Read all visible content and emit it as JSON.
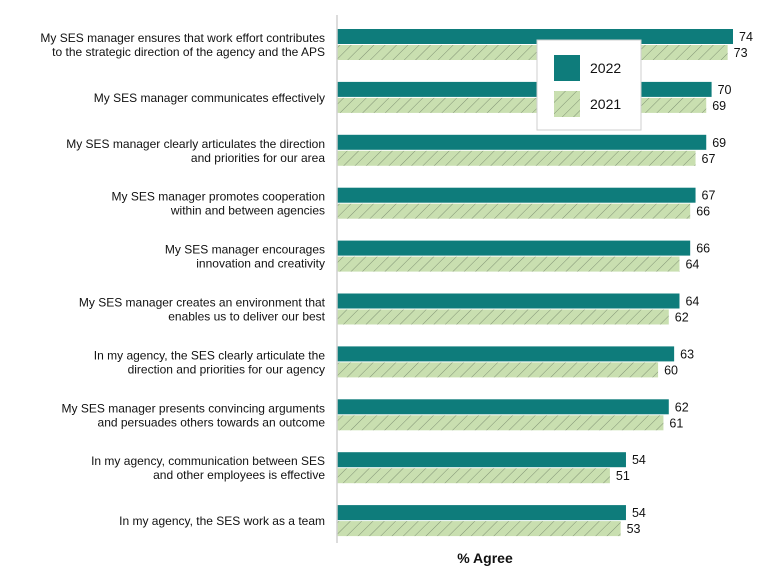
{
  "chart_data": {
    "type": "bar",
    "orientation": "horizontal",
    "categories": [
      [
        "My SES manager ensures that work effort contributes",
        "to the strategic direction of the agency and the APS"
      ],
      [
        "My SES manager communicates effectively"
      ],
      [
        "My SES manager clearly articulates the direction",
        "and priorities for our area"
      ],
      [
        "My SES manager promotes cooperation",
        "within and between agencies"
      ],
      [
        "My SES manager encourages",
        "innovation and creativity"
      ],
      [
        "My SES manager creates an environment that",
        "enables us to deliver our best"
      ],
      [
        "In my agency, the SES clearly articulate the",
        "direction and priorities for our agency"
      ],
      [
        "My SES manager presents convincing arguments",
        "and persuades others towards an outcome"
      ],
      [
        "In my agency, communication between SES",
        "and other employees is effective"
      ],
      [
        "In my agency, the SES work as a team"
      ]
    ],
    "series": [
      {
        "name": "2022",
        "values": [
          74,
          70,
          69,
          67,
          66,
          64,
          63,
          62,
          54,
          54
        ],
        "color": "#0e7c7b",
        "pattern": "solid"
      },
      {
        "name": "2021",
        "values": [
          73,
          69,
          67,
          66,
          64,
          62,
          60,
          61,
          51,
          53
        ],
        "color": "#c9dfb0",
        "pattern": "diagonal-hatch"
      }
    ],
    "xlabel": "% Agree",
    "xlim": [
      0,
      80
    ],
    "data_labels": true,
    "grid": false,
    "legend_position": "top-right"
  }
}
